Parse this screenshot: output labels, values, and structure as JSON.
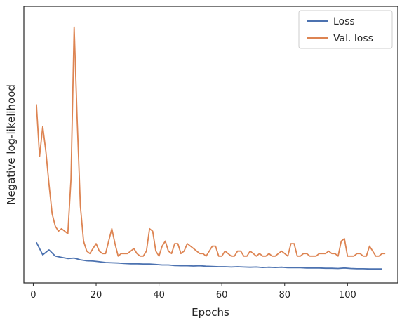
{
  "chart_data": {
    "type": "line",
    "title": "",
    "xlabel": "Epochs",
    "ylabel": "Negative log-likelihood",
    "xlim": [
      -3,
      116
    ],
    "ylim": [
      0,
      100
    ],
    "y_ticks_visible": false,
    "grid": false,
    "legend": "top-right",
    "xticks": [
      0,
      20,
      40,
      60,
      80,
      100
    ],
    "series": [
      {
        "name": "Loss",
        "color": "#4c72b0",
        "x": [
          1,
          3,
          5,
          7,
          9,
          11,
          13,
          15,
          17,
          19,
          21,
          23,
          25,
          27,
          29,
          31,
          33,
          35,
          37,
          39,
          41,
          43,
          45,
          47,
          49,
          51,
          53,
          55,
          57,
          59,
          61,
          63,
          65,
          67,
          69,
          71,
          73,
          75,
          77,
          79,
          81,
          83,
          85,
          87,
          89,
          91,
          93,
          95,
          97,
          99,
          101,
          103,
          105,
          107,
          109,
          111
        ],
        "y": [
          13.5,
          8.5,
          10.5,
          8,
          7.5,
          7,
          7.2,
          6.5,
          6.1,
          6,
          5.7,
          5.4,
          5.3,
          5.2,
          5,
          4.9,
          4.9,
          4.8,
          4.8,
          4.6,
          4.4,
          4.4,
          4.2,
          4.1,
          4.1,
          4,
          4.1,
          3.9,
          3.8,
          3.7,
          3.7,
          3.6,
          3.7,
          3.6,
          3.5,
          3.6,
          3.4,
          3.5,
          3.4,
          3.5,
          3.3,
          3.3,
          3.3,
          3.2,
          3.2,
          3.2,
          3.1,
          3.1,
          3,
          3.2,
          3,
          2.9,
          2.9,
          2.8,
          2.8,
          2.8
        ]
      },
      {
        "name": "Val. loss",
        "color": "#dd8452",
        "x": [
          1,
          2,
          3,
          4,
          5,
          6,
          7,
          8,
          9,
          10,
          11,
          12,
          13,
          14,
          15,
          16,
          17,
          18,
          19,
          20,
          21,
          22,
          23,
          24,
          25,
          26,
          27,
          28,
          29,
          30,
          31,
          32,
          33,
          34,
          35,
          36,
          37,
          38,
          39,
          40,
          41,
          42,
          43,
          44,
          45,
          46,
          47,
          48,
          49,
          50,
          51,
          52,
          53,
          54,
          55,
          56,
          57,
          58,
          59,
          60,
          61,
          62,
          63,
          64,
          65,
          66,
          67,
          68,
          69,
          70,
          71,
          72,
          73,
          74,
          75,
          76,
          77,
          78,
          79,
          80,
          81,
          82,
          83,
          84,
          85,
          86,
          87,
          88,
          89,
          90,
          91,
          92,
          93,
          94,
          95,
          96,
          97,
          98,
          99,
          100,
          101,
          102,
          103,
          104,
          105,
          106,
          107,
          108,
          109,
          110,
          111,
          112
        ],
        "y": [
          69,
          48,
          60,
          50,
          37,
          25,
          20,
          18,
          19,
          18,
          17,
          39,
          100,
          62,
          28,
          14,
          10,
          9,
          11,
          13,
          10,
          9,
          9,
          14,
          19,
          13,
          8,
          9,
          9,
          9,
          10,
          11,
          9,
          8,
          8,
          10,
          19,
          18,
          10,
          8,
          12,
          14,
          10,
          9,
          13,
          13,
          9,
          10,
          13,
          12,
          11,
          10,
          9,
          9,
          8,
          10,
          12,
          12,
          8,
          8,
          10,
          9,
          8,
          8,
          10,
          10,
          8,
          8,
          10,
          9,
          8,
          9,
          8,
          8,
          9,
          8,
          8,
          9,
          10,
          9,
          8,
          13,
          13,
          8,
          8,
          9,
          9,
          8,
          8,
          8,
          9,
          9,
          9,
          10,
          9,
          9,
          8,
          14,
          15,
          8,
          8,
          8,
          9,
          9,
          8,
          8,
          12,
          10,
          8,
          8,
          9,
          9
        ]
      }
    ]
  }
}
